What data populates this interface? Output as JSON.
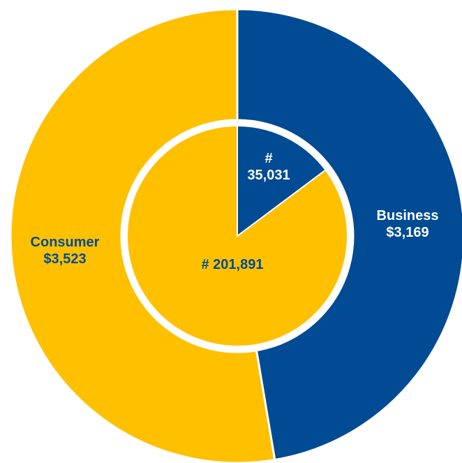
{
  "colors": {
    "business": "#004B93",
    "consumer": "#FFC000",
    "separator": "#FFFFFF"
  },
  "chart_data": [
    {
      "type": "pie",
      "ring": "outer",
      "description_units": "dollars",
      "slices": [
        {
          "category": "Business",
          "value": 3169,
          "label_lines": [
            "Business",
            "$3,169"
          ],
          "color": "#004B93",
          "label_color": "#FFFFFF"
        },
        {
          "category": "Consumer",
          "value": 3523,
          "label_lines": [
            "Consumer",
            "$3,523"
          ],
          "color": "#FFC000",
          "label_color": "#004B93"
        }
      ]
    },
    {
      "type": "pie",
      "ring": "inner",
      "description_units": "count",
      "slices": [
        {
          "category": "Business",
          "value": 35031,
          "label_lines": [
            "#",
            "35,031"
          ],
          "color": "#004B93",
          "label_color": "#FFFFFF"
        },
        {
          "category": "Consumer",
          "value": 201891,
          "label_lines": [
            "# 201,891"
          ],
          "color": "#FFC000",
          "label_color": "#004B93"
        }
      ]
    }
  ]
}
